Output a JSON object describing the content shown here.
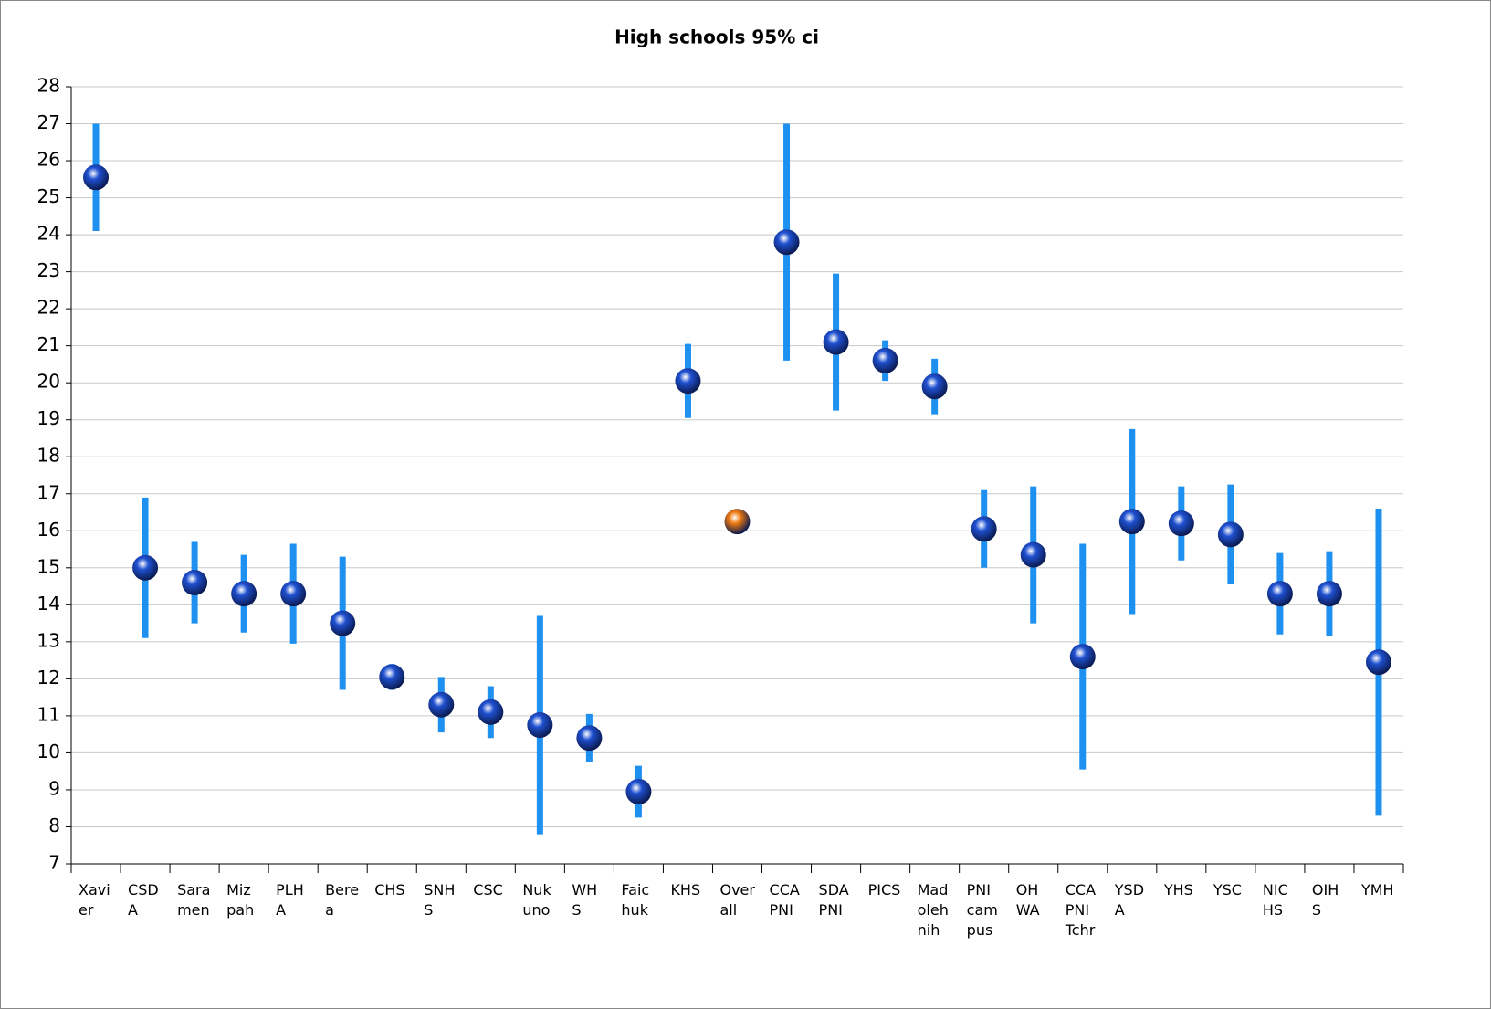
{
  "chart_data": {
    "type": "errorbar",
    "title": "High schools 95% ci",
    "categories": [
      "Xavi\ner",
      "CSD\nA",
      "Sara\nmen",
      "Miz\npah",
      "PLH\nA",
      "Bere\na",
      "CHS",
      "SNH\nS",
      "CSC",
      "Nuk\nuno",
      "WH\nS",
      "Faic\nhuk",
      "KHS",
      "Over\nall",
      "CCA\nPNI",
      "SDA\nPNI",
      "PICS",
      "Mad\noleh\nnih",
      "PNI\ncam\npus",
      "OH\nWA",
      "CCA\nPNI\nTchr",
      "YSD\nA",
      "YHS",
      "YSC",
      "NIC\nHS",
      "OIH\nS",
      "YMH"
    ],
    "values": [
      25.55,
      15.0,
      14.6,
      14.3,
      14.3,
      13.5,
      12.05,
      11.3,
      11.1,
      10.75,
      10.4,
      8.95,
      20.05,
      16.25,
      23.8,
      21.1,
      20.6,
      19.9,
      16.05,
      15.35,
      12.6,
      16.25,
      16.2,
      15.9,
      14.3,
      14.3,
      12.45
    ],
    "errors": [
      1.45,
      1.9,
      1.1,
      1.05,
      1.35,
      1.8,
      0.35,
      0.75,
      0.7,
      2.95,
      0.65,
      0.7,
      1.0,
      null,
      3.2,
      1.85,
      0.55,
      0.75,
      1.05,
      1.85,
      3.05,
      2.5,
      1.0,
      1.35,
      1.1,
      1.15,
      4.15
    ],
    "colors": [
      "#1f50d0",
      "#1f50d0",
      "#1f50d0",
      "#1f50d0",
      "#1f50d0",
      "#1f50d0",
      "#1f50d0",
      "#1f50d0",
      "#1f50d0",
      "#1f50d0",
      "#1f50d0",
      "#1f50d0",
      "#1f50d0",
      "#f07a10",
      "#1f50d0",
      "#1f50d0",
      "#1f50d0",
      "#1f50d0",
      "#1f50d0",
      "#1f50d0",
      "#1f50d0",
      "#1f50d0",
      "#1f50d0",
      "#1f50d0",
      "#1f50d0",
      "#1f50d0",
      "#1f50d0"
    ],
    "error_color": "#1e90f0",
    "ylim": [
      7,
      28
    ],
    "yticks": [
      7,
      8,
      9,
      10,
      11,
      12,
      13,
      14,
      15,
      16,
      17,
      18,
      19,
      20,
      21,
      22,
      23,
      24,
      25,
      26,
      27,
      28
    ],
    "grid": true
  }
}
